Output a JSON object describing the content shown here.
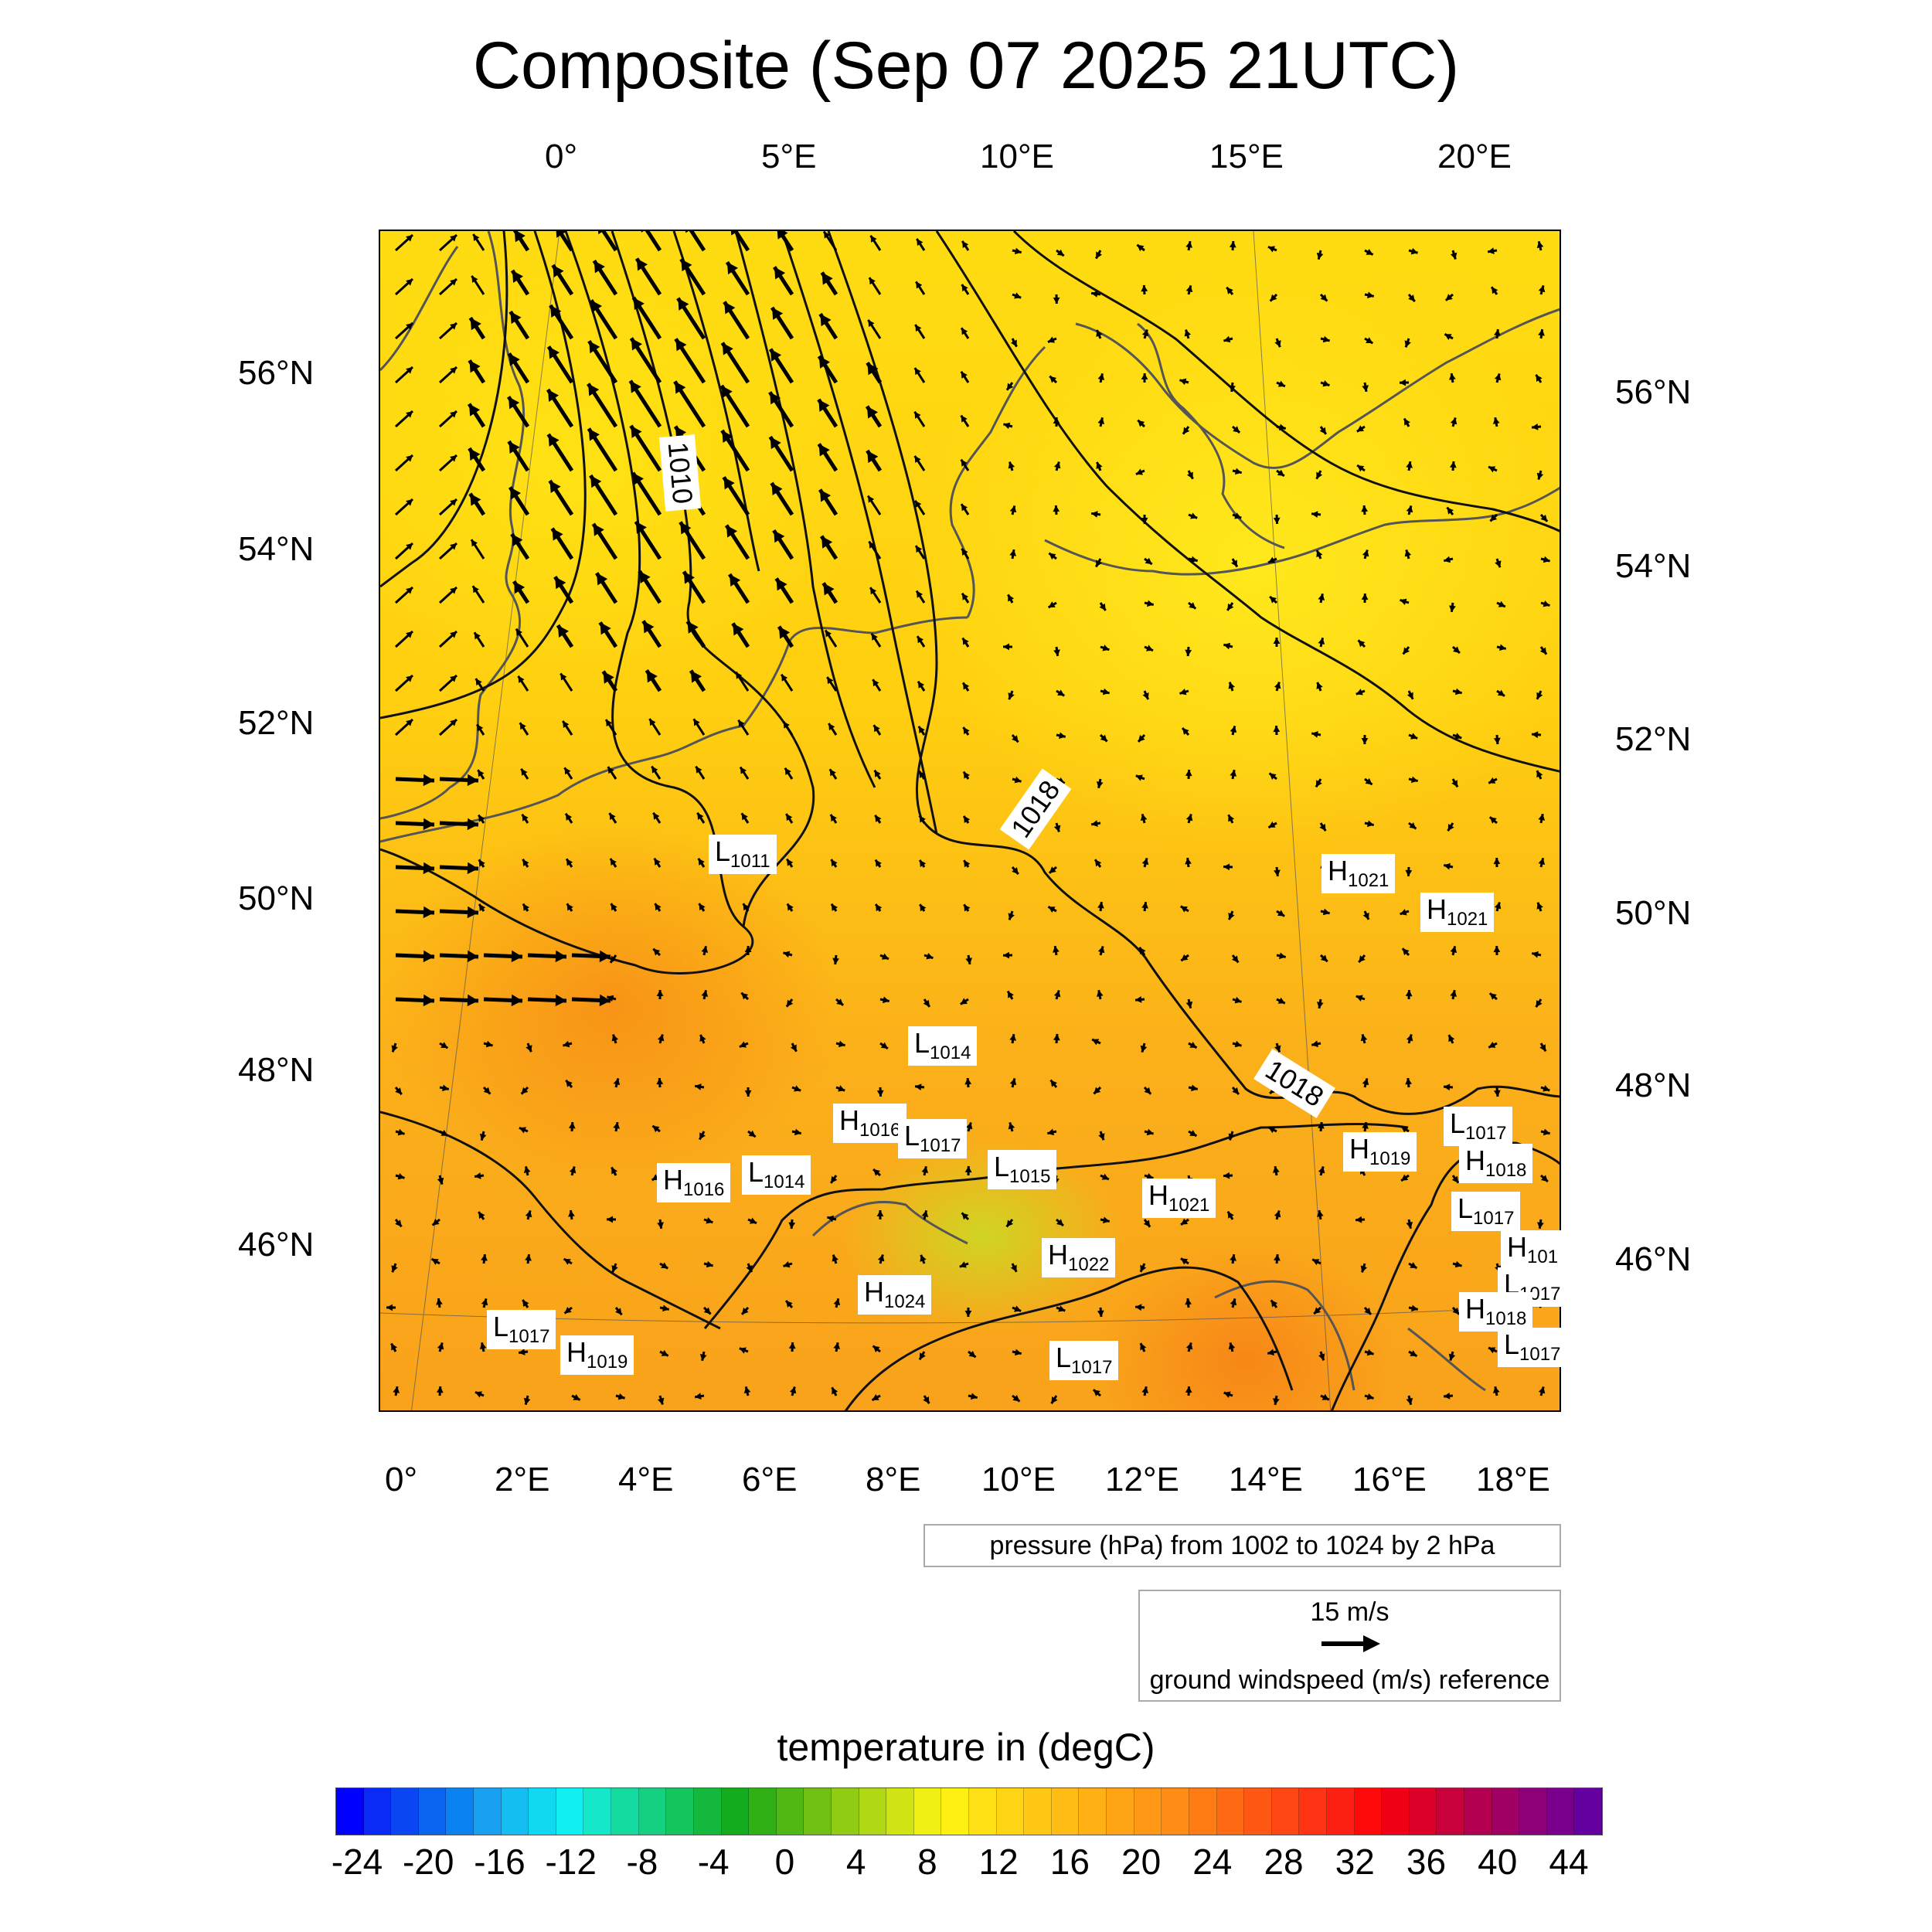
{
  "title": "Composite (Sep 07 2025 21UTC)",
  "top_axis_labels": [
    "0°",
    "5°E",
    "10°E",
    "15°E",
    "20°E"
  ],
  "bottom_axis_labels": [
    "0°",
    "2°E",
    "4°E",
    "6°E",
    "8°E",
    "10°E",
    "12°E",
    "14°E",
    "16°E",
    "18°E"
  ],
  "left_axis_labels": [
    "56°N",
    "54°N",
    "52°N",
    "50°N",
    "48°N",
    "46°N"
  ],
  "right_axis_labels": [
    "56°N",
    "54°N",
    "52°N",
    "50°N",
    "48°N",
    "46°N"
  ],
  "isobar_labels": [
    {
      "text": "1010"
    },
    {
      "text": "1018"
    },
    {
      "text": "1018"
    }
  ],
  "pressure_centers": [
    {
      "type": "L",
      "value": "1011"
    },
    {
      "type": "H",
      "value": "1021"
    },
    {
      "type": "H",
      "value": "1021"
    },
    {
      "type": "L",
      "value": "1014"
    },
    {
      "type": "H",
      "value": "1016"
    },
    {
      "type": "L",
      "value": "1017"
    },
    {
      "type": "L",
      "value": "1015"
    },
    {
      "type": "H",
      "value": "1019"
    },
    {
      "type": "L",
      "value": "1017"
    },
    {
      "type": "H",
      "value": "1018"
    },
    {
      "type": "H",
      "value": "1016"
    },
    {
      "type": "L",
      "value": "1014"
    },
    {
      "type": "H",
      "value": "1021"
    },
    {
      "type": "L",
      "value": "1017"
    },
    {
      "type": "H",
      "value": "101"
    },
    {
      "type": "H",
      "value": "1022"
    },
    {
      "type": "L",
      "value": "1017"
    },
    {
      "type": "H",
      "value": "1024"
    },
    {
      "type": "H",
      "value": "1018"
    },
    {
      "type": "L",
      "value": "1017"
    },
    {
      "type": "H",
      "value": "1019"
    },
    {
      "type": "L",
      "value": "1017"
    },
    {
      "type": "L",
      "value": "1017"
    }
  ],
  "pressure_legend": "pressure (hPa) from 1002 to 1024 by 2 hPa",
  "wind_legend": {
    "speed": "15 m/s",
    "caption": "ground windspeed (m/s) reference"
  },
  "colorbar": {
    "title": "temperature in (degC)",
    "labels": [
      "-24",
      "-20",
      "-16",
      "-12",
      "-8",
      "-4",
      "0",
      "4",
      "8",
      "12",
      "16",
      "20",
      "24",
      "28",
      "32",
      "36",
      "40",
      "44"
    ],
    "colors": [
      "#0000ff",
      "#0a2af8",
      "#0a46f4",
      "#0a64f0",
      "#0a82f0",
      "#1aa0f0",
      "#14bef0",
      "#10d8f0",
      "#10f0f0",
      "#14e8c8",
      "#14dca0",
      "#14d080",
      "#14c45c",
      "#14b83c",
      "#14ac1c",
      "#30b014",
      "#50b814",
      "#70c014",
      "#90cc14",
      "#b0d814",
      "#d0e414",
      "#f0f014",
      "#fff014",
      "#ffe014",
      "#ffd414",
      "#ffc814",
      "#ffbc14",
      "#ffb014",
      "#ffa414",
      "#ff9814",
      "#ff8c14",
      "#ff7c14",
      "#ff6a14",
      "#ff5814",
      "#ff4614",
      "#ff3414",
      "#ff2014",
      "#ff0a0a",
      "#f00014",
      "#dc0028",
      "#c8003c",
      "#b40050",
      "#a00064",
      "#8c0078",
      "#78008c",
      "#6400a0"
    ]
  }
}
